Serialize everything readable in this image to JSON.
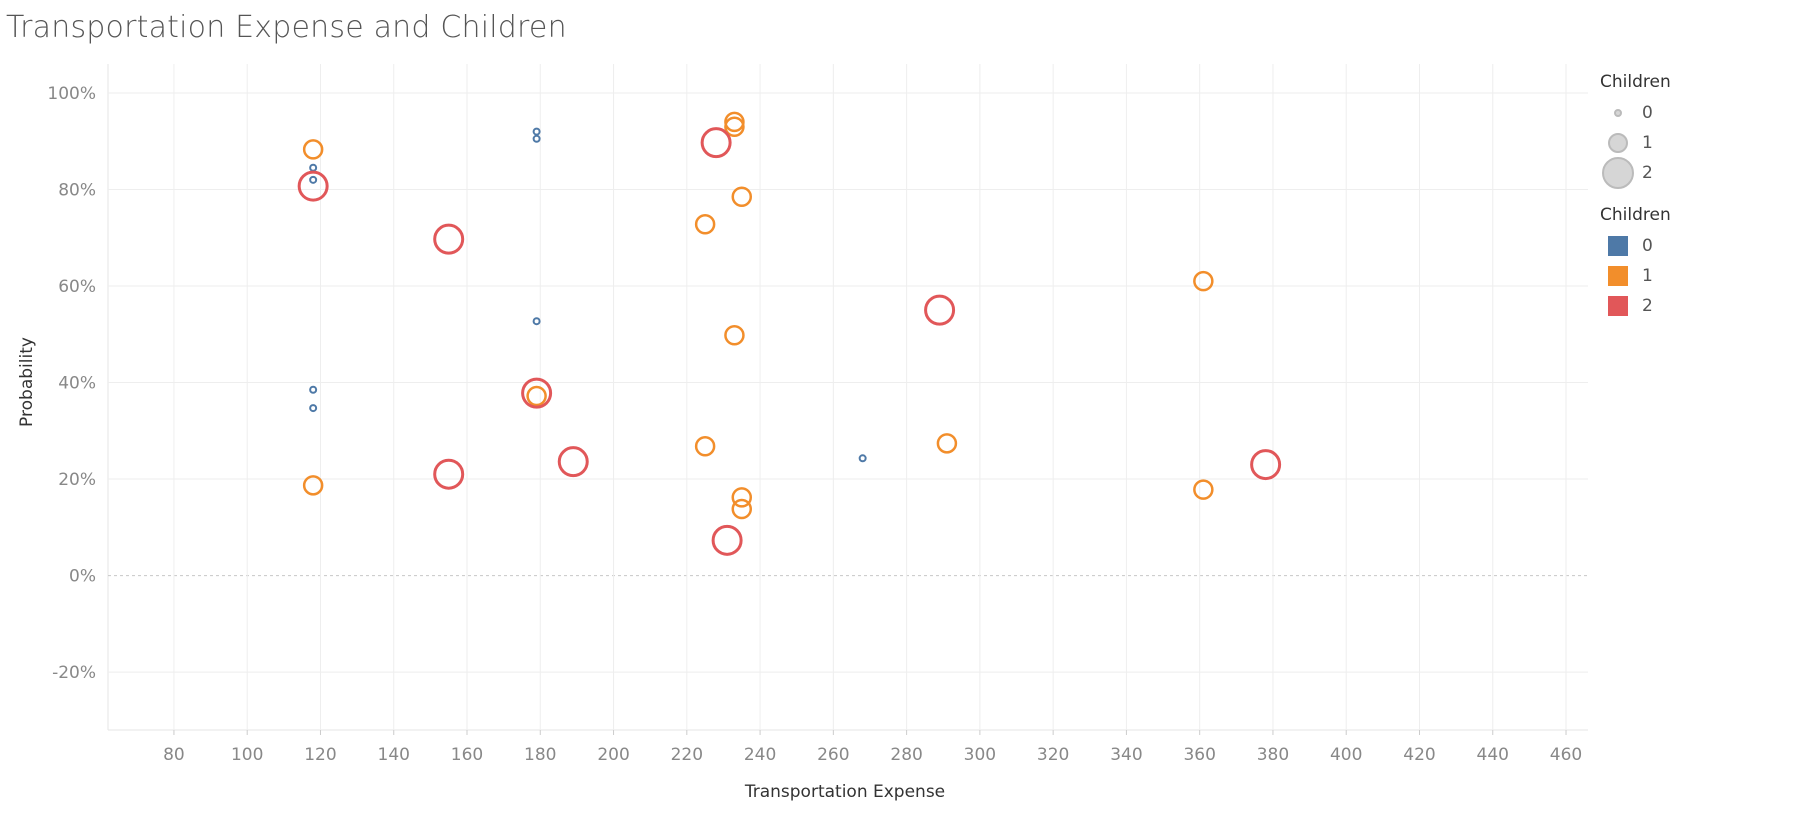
{
  "title": "Transportation Expense and Children",
  "legend_size": {
    "title": "Children",
    "items": [
      {
        "label": "0",
        "value": 0
      },
      {
        "label": "1",
        "value": 1
      },
      {
        "label": "2",
        "value": 2
      }
    ]
  },
  "legend_color": {
    "title": "Children",
    "items": [
      {
        "label": "0",
        "color": "#4e79a7"
      },
      {
        "label": "1",
        "color": "#f28e2b"
      },
      {
        "label": "2",
        "color": "#e15759"
      }
    ]
  },
  "chart_data": {
    "type": "scatter",
    "title": "Transportation Expense and Children",
    "xlabel": "Transportation Expense",
    "ylabel": "Probability",
    "xlim": [
      62,
      466
    ],
    "ylim": [
      -0.32,
      1.06
    ],
    "xticks": [
      "80",
      "100",
      "120",
      "140",
      "160",
      "180",
      "200",
      "220",
      "240",
      "260",
      "280",
      "300",
      "320",
      "340",
      "360",
      "380",
      "400",
      "420",
      "440",
      "460"
    ],
    "yticks": [
      "100%",
      "80%",
      "60%",
      "40%",
      "20%",
      "0%",
      "-20%"
    ],
    "grid": true,
    "legend_position": "right",
    "series": [
      {
        "name": "0",
        "color": "#4e79a7",
        "points": [
          {
            "x": 118,
            "y": 0.845
          },
          {
            "x": 118,
            "y": 0.82
          },
          {
            "x": 118,
            "y": 0.385
          },
          {
            "x": 118,
            "y": 0.347
          },
          {
            "x": 179,
            "y": 0.92
          },
          {
            "x": 179,
            "y": 0.905
          },
          {
            "x": 179,
            "y": 0.527
          },
          {
            "x": 268,
            "y": 0.243
          }
        ]
      },
      {
        "name": "1",
        "color": "#f28e2b",
        "points": [
          {
            "x": 118,
            "y": 0.883
          },
          {
            "x": 118,
            "y": 0.187
          },
          {
            "x": 179,
            "y": 0.372
          },
          {
            "x": 225,
            "y": 0.728
          },
          {
            "x": 225,
            "y": 0.268
          },
          {
            "x": 233,
            "y": 0.94
          },
          {
            "x": 233,
            "y": 0.93
          },
          {
            "x": 233,
            "y": 0.498
          },
          {
            "x": 235,
            "y": 0.785
          },
          {
            "x": 235,
            "y": 0.162
          },
          {
            "x": 235,
            "y": 0.138
          },
          {
            "x": 291,
            "y": 0.274
          },
          {
            "x": 361,
            "y": 0.61
          },
          {
            "x": 361,
            "y": 0.178
          }
        ]
      },
      {
        "name": "2",
        "color": "#e15759",
        "points": [
          {
            "x": 118,
            "y": 0.807
          },
          {
            "x": 155,
            "y": 0.697
          },
          {
            "x": 155,
            "y": 0.21
          },
          {
            "x": 179,
            "y": 0.378
          },
          {
            "x": 189,
            "y": 0.236
          },
          {
            "x": 228,
            "y": 0.897
          },
          {
            "x": 231,
            "y": 0.073
          },
          {
            "x": 289,
            "y": 0.55
          },
          {
            "x": 378,
            "y": 0.23
          }
        ]
      }
    ]
  }
}
